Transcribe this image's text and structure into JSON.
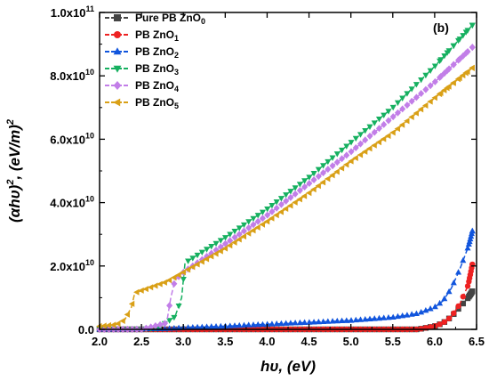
{
  "chart_data": {
    "type": "scatter",
    "panel_label": "(b)",
    "xlabel": {
      "main": "hυ, (eV)"
    },
    "ylabel": {
      "main": "(αhυ)",
      "sup": "2",
      "mid": ", (eV/m)",
      "sup2": "2"
    },
    "xlim": [
      2.0,
      6.5
    ],
    "ylim": [
      0,
      100000000000.0
    ],
    "xticks": [
      2.0,
      2.5,
      3.0,
      3.5,
      4.0,
      4.5,
      5.0,
      5.5,
      6.0,
      6.5
    ],
    "xtick_labels": [
      "2.0",
      "2.5",
      "3.0",
      "3.5",
      "4.0",
      "4.5",
      "5.0",
      "5.5",
      "6.0",
      "6.5"
    ],
    "yticks": [
      0,
      20000000000.0,
      40000000000.0,
      60000000000.0,
      80000000000.0,
      100000000000.0
    ],
    "ytick_labels": [
      {
        "base": "0.0",
        "exp": ""
      },
      {
        "base": "2.0x10",
        "exp": "10"
      },
      {
        "base": "4.0x10",
        "exp": "10"
      },
      {
        "base": "6.0x10",
        "exp": "10"
      },
      {
        "base": "8.0x10",
        "exp": "10"
      },
      {
        "base": "1.0x10",
        "exp": "11"
      }
    ],
    "legend_position": "top-left",
    "series": [
      {
        "name": "Pure PB ZnO",
        "sub": "0",
        "color": "#444444",
        "marker": "square",
        "points": [
          [
            2.0,
            0
          ],
          [
            3.0,
            0
          ],
          [
            4.0,
            0
          ],
          [
            5.0,
            0
          ],
          [
            5.8,
            0
          ],
          [
            6.0,
            1000000000.0
          ],
          [
            6.1,
            2000000000.0
          ],
          [
            6.2,
            4000000000.0
          ],
          [
            6.3,
            7000000000.0
          ],
          [
            6.4,
            10000000000.0
          ],
          [
            6.45,
            12000000000.0
          ]
        ]
      },
      {
        "name": "PB ZnO",
        "sub": "1",
        "color": "#ee2222",
        "marker": "circle",
        "points": [
          [
            2.0,
            0
          ],
          [
            3.0,
            0
          ],
          [
            4.0,
            0
          ],
          [
            5.0,
            0
          ],
          [
            5.8,
            0
          ],
          [
            6.0,
            1000000000.0
          ],
          [
            6.1,
            2000000000.0
          ],
          [
            6.2,
            4000000000.0
          ],
          [
            6.3,
            8000000000.0
          ],
          [
            6.4,
            14000000000.0
          ],
          [
            6.45,
            20500000000.0
          ]
        ]
      },
      {
        "name": "PB ZnO",
        "sub": "2",
        "color": "#1155dd",
        "marker": "triangle-up",
        "points": [
          [
            2.0,
            0
          ],
          [
            2.8,
            200000000.0
          ],
          [
            3.0,
            500000000.0
          ],
          [
            3.5,
            1000000000.0
          ],
          [
            4.0,
            1600000000.0
          ],
          [
            4.5,
            2200000000.0
          ],
          [
            5.0,
            2800000000.0
          ],
          [
            5.5,
            3800000000.0
          ],
          [
            5.8,
            5000000000.0
          ],
          [
            6.0,
            7000000000.0
          ],
          [
            6.1,
            9000000000.0
          ],
          [
            6.2,
            13000000000.0
          ],
          [
            6.3,
            19000000000.0
          ],
          [
            6.4,
            26000000000.0
          ],
          [
            6.45,
            31000000000.0
          ]
        ]
      },
      {
        "name": "PB ZnO",
        "sub": "3",
        "color": "#16b060",
        "marker": "triangle-down",
        "points": [
          [
            2.0,
            0
          ],
          [
            2.5,
            0
          ],
          [
            2.7,
            500000000.0
          ],
          [
            2.9,
            4000000000.0
          ],
          [
            2.98,
            10000000000.0
          ],
          [
            3.02,
            21000000000.0
          ],
          [
            3.5,
            29000000000.0
          ],
          [
            4.0,
            38000000000.0
          ],
          [
            4.5,
            48000000000.0
          ],
          [
            5.0,
            59000000000.0
          ],
          [
            5.5,
            70000000000.0
          ],
          [
            6.0,
            83000000000.0
          ],
          [
            6.45,
            96000000000.0
          ]
        ]
      },
      {
        "name": "PB ZnO",
        "sub": "4",
        "color": "#c27ee8",
        "marker": "diamond",
        "points": [
          [
            2.0,
            0
          ],
          [
            2.5,
            0
          ],
          [
            2.8,
            2000000000.0
          ],
          [
            2.85,
            10000000000.0
          ],
          [
            2.9,
            15500000000.0
          ],
          [
            3.0,
            18000000000.0
          ],
          [
            3.5,
            27000000000.0
          ],
          [
            4.0,
            36000000000.0
          ],
          [
            4.5,
            46000000000.0
          ],
          [
            5.0,
            56000000000.0
          ],
          [
            5.5,
            67000000000.0
          ],
          [
            6.0,
            78000000000.0
          ],
          [
            6.45,
            89000000000.0
          ]
        ]
      },
      {
        "name": "PB ZnO",
        "sub": "5",
        "color": "#d9a017",
        "marker": "triangle-left",
        "points": [
          [
            2.0,
            1000000000.0
          ],
          [
            2.2,
            1500000000.0
          ],
          [
            2.3,
            3000000000.0
          ],
          [
            2.38,
            7000000000.0
          ],
          [
            2.42,
            11500000000.0
          ],
          [
            2.8,
            15000000000.0
          ],
          [
            3.0,
            18000000000.0
          ],
          [
            3.5,
            25500000000.0
          ],
          [
            4.0,
            34000000000.0
          ],
          [
            4.5,
            43000000000.0
          ],
          [
            5.0,
            53000000000.0
          ],
          [
            5.5,
            62000000000.0
          ],
          [
            6.0,
            73000000000.0
          ],
          [
            6.45,
            82500000000.0
          ]
        ]
      }
    ]
  }
}
